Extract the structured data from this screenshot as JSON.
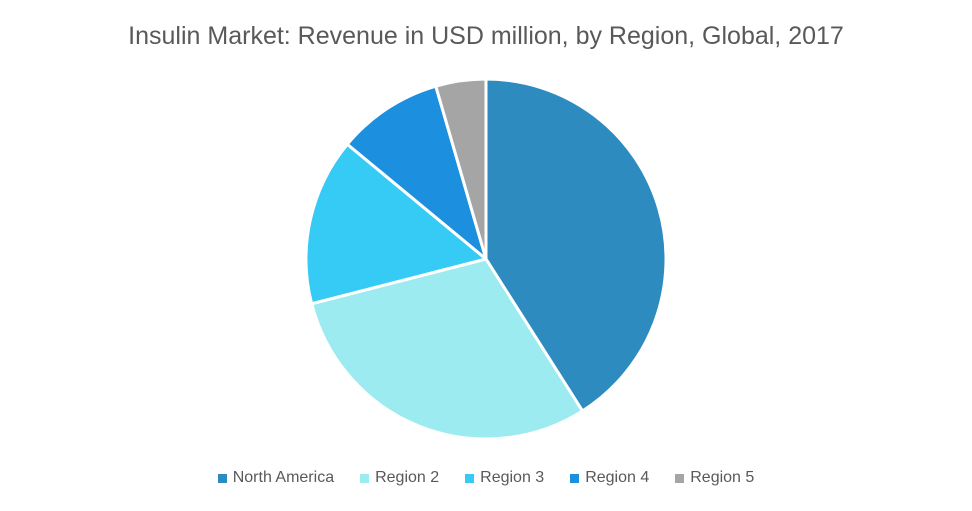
{
  "chart_data": {
    "type": "pie",
    "title": "Insulin Market: Revenue in USD million, by Region, Global, 2017",
    "categories": [
      "North America",
      "Region 2",
      "Region 3",
      "Region 4",
      "Region 5"
    ],
    "values": [
      41,
      30,
      15,
      9.5,
      4.5
    ],
    "colors": [
      "#2E8BC0",
      "#9BEBF1",
      "#35CBF5",
      "#1C8FDE",
      "#A5A5A5"
    ],
    "legend_position": "bottom"
  }
}
